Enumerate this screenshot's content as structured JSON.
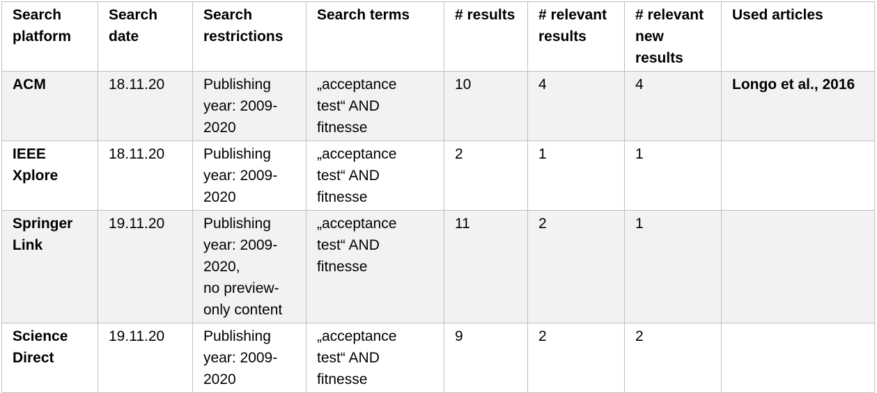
{
  "table": {
    "headers": [
      "Search\nplatform",
      "Search\ndate",
      "Search\nrestrictions",
      "Search terms",
      "# results",
      "# relevant\nresults",
      "# relevant\nnew\nresults",
      "Used articles"
    ],
    "rows": [
      {
        "platform": "ACM",
        "date": "18.11.20",
        "restrictions": "Publishing\nyear: 2009-\n2020",
        "terms": "„acceptance\ntest“ AND\nfitnesse",
        "results": "10",
        "relevant": "4",
        "relevant_new": "4",
        "used": "Longo et al., 2016"
      },
      {
        "platform": "IEEE\nXplore",
        "date": "18.11.20",
        "restrictions": "Publishing\nyear: 2009-\n2020",
        "terms": "„acceptance\ntest“ AND\nfitnesse",
        "results": "2",
        "relevant": "1",
        "relevant_new": "1",
        "used": ""
      },
      {
        "platform": "Springer\nLink",
        "date": "19.11.20",
        "restrictions": "Publishing\nyear: 2009-\n2020,\nno preview-\nonly content",
        "terms": "„acceptance\ntest“ AND\nfitnesse",
        "results": "11",
        "relevant": "2",
        "relevant_new": "1",
        "used": ""
      },
      {
        "platform": "Science\nDirect",
        "date": "19.11.20",
        "restrictions": "Publishing\nyear: 2009-\n2020",
        "terms": "„acceptance\ntest“ AND\nfitnesse",
        "results": "9",
        "relevant": "2",
        "relevant_new": "2",
        "used": ""
      }
    ]
  },
  "colors": {
    "shaded_row": "#f2f2f2",
    "border": "#bfbfbf"
  }
}
